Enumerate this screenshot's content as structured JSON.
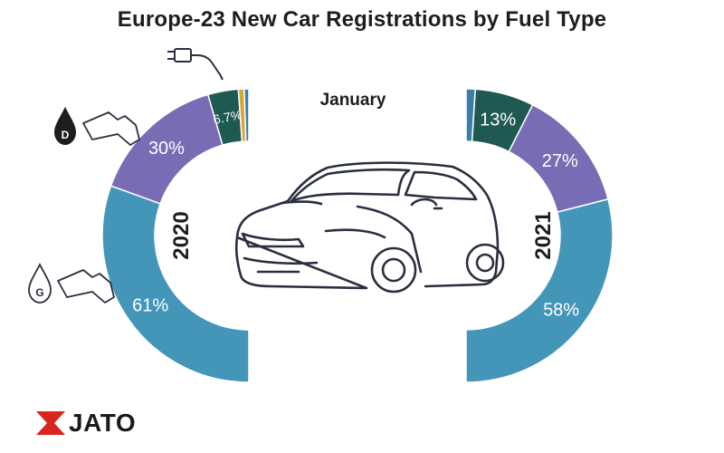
{
  "title": "Europe-23 New Car Registrations by Fuel Type",
  "subtitle": "January",
  "brand": "JATO",
  "colors": {
    "petrol": "#4496b9",
    "diesel": "#786cb5",
    "electric": "#1e5a52",
    "hybrid": "#d9a63a",
    "other": "#3a7fa8",
    "logo_red": "#d9261c"
  },
  "icons": [
    "plug-icon",
    "diesel-pump-icon",
    "petrol-pump-icon",
    "car-outline-icon"
  ],
  "chart_data": [
    {
      "type": "pie",
      "variant": "half-donut",
      "side": "left",
      "label": "2020",
      "slices": [
        {
          "category": "petrol",
          "value": 61,
          "label": "61%"
        },
        {
          "category": "diesel",
          "value": 30,
          "label": "30%"
        },
        {
          "category": "electric",
          "value": 6.7,
          "label": "6.7%"
        },
        {
          "category": "hybrid",
          "value": 1.3,
          "label": ""
        },
        {
          "category": "other",
          "value": 1.0,
          "label": ""
        }
      ]
    },
    {
      "type": "pie",
      "variant": "half-donut",
      "side": "right",
      "label": "2021",
      "slices": [
        {
          "category": "petrol",
          "value": 58,
          "label": "58%"
        },
        {
          "category": "diesel",
          "value": 27,
          "label": "27%"
        },
        {
          "category": "electric",
          "value": 13,
          "label": "13%"
        },
        {
          "category": "other",
          "value": 2,
          "label": ""
        }
      ]
    }
  ]
}
